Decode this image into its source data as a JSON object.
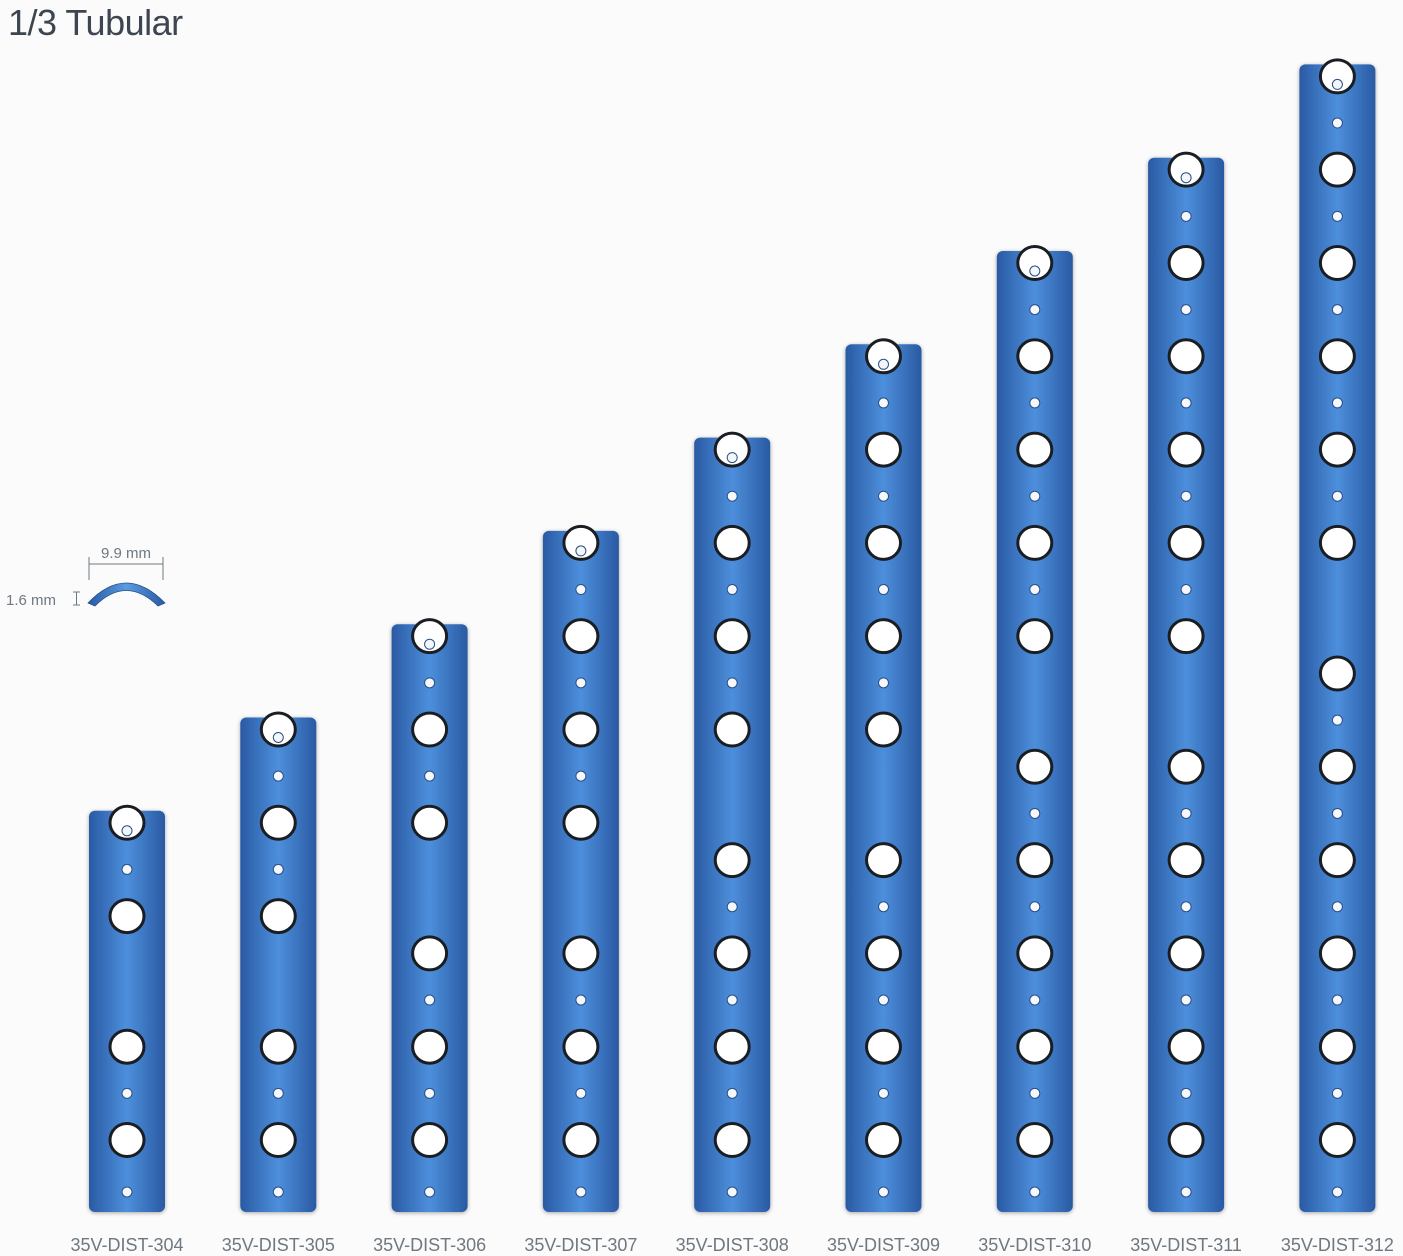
{
  "title": "1/3 Tubular",
  "cross_section": {
    "width_label": "9.9 mm",
    "thickness_label": "1.6 mm"
  },
  "colors": {
    "plate_dark": "#2c5ea8",
    "plate_light": "#4d8fdc",
    "plate_mid": "#3a78c8",
    "hole_fill": "#ffffff",
    "hole_rim": "#1a1d22",
    "label": "#6f7880"
  },
  "plates": [
    {
      "label": "35V-DIST-304",
      "holes": 4
    },
    {
      "label": "35V-DIST-305",
      "holes": 5
    },
    {
      "label": "35V-DIST-306",
      "holes": 6
    },
    {
      "label": "35V-DIST-307",
      "holes": 7
    },
    {
      "label": "35V-DIST-308",
      "holes": 8
    },
    {
      "label": "35V-DIST-309",
      "holes": 9
    },
    {
      "label": "35V-DIST-310",
      "holes": 10
    },
    {
      "label": "35V-DIST-311",
      "holes": 11
    },
    {
      "label": "35V-DIST-312",
      "holes": 12
    }
  ]
}
